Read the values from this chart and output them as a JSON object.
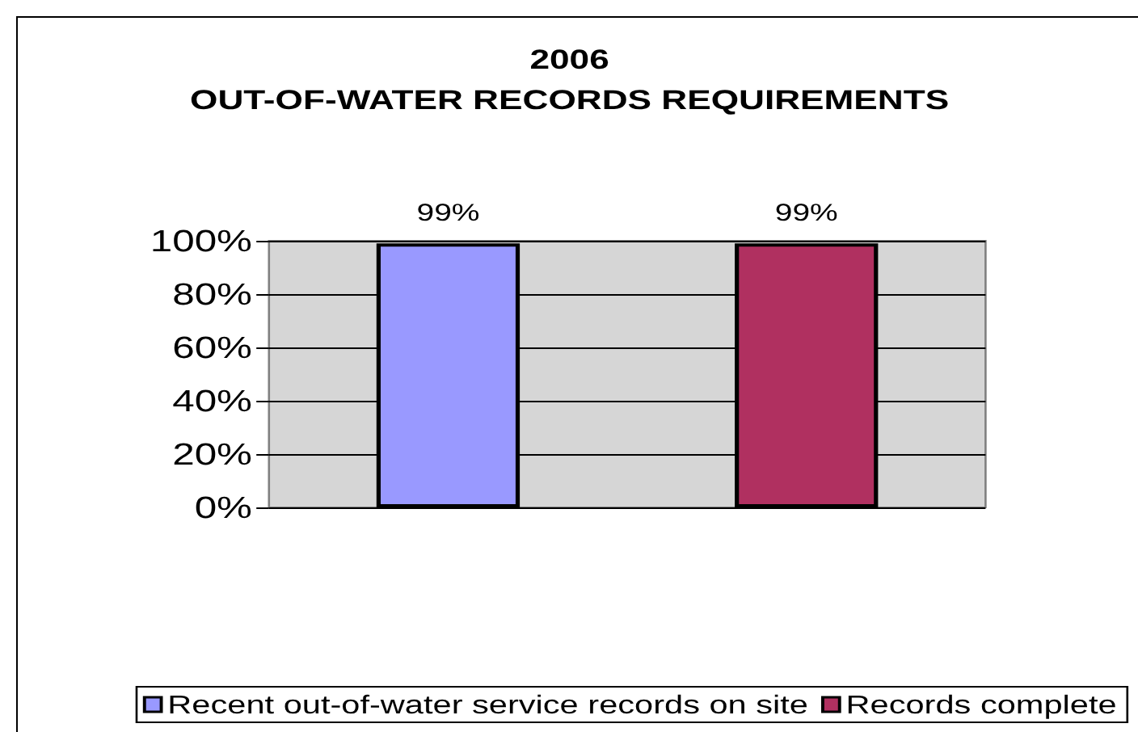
{
  "chart_data": {
    "type": "bar",
    "title": "2006\nOUT-OF-WATER RECORDS REQUIREMENTS",
    "categories": [
      null,
      null
    ],
    "series": [
      {
        "name": "Recent out-of-water service records on site",
        "color": "#9999ff",
        "values": [
          99,
          null
        ],
        "value_labels": [
          "99%",
          null
        ]
      },
      {
        "name": "Records complete",
        "color": "#b03060",
        "values": [
          null,
          99
        ],
        "value_labels": [
          null,
          "99%"
        ]
      }
    ],
    "ylim": [
      0,
      100
    ],
    "yticks": [
      {
        "value": 0,
        "label": "0%"
      },
      {
        "value": 20,
        "label": "20%"
      },
      {
        "value": 40,
        "label": "40%"
      },
      {
        "value": 60,
        "label": "60%"
      },
      {
        "value": 80,
        "label": "80%"
      },
      {
        "value": 100,
        "label": "100%"
      }
    ],
    "grid": "y",
    "legend": "bottom"
  }
}
